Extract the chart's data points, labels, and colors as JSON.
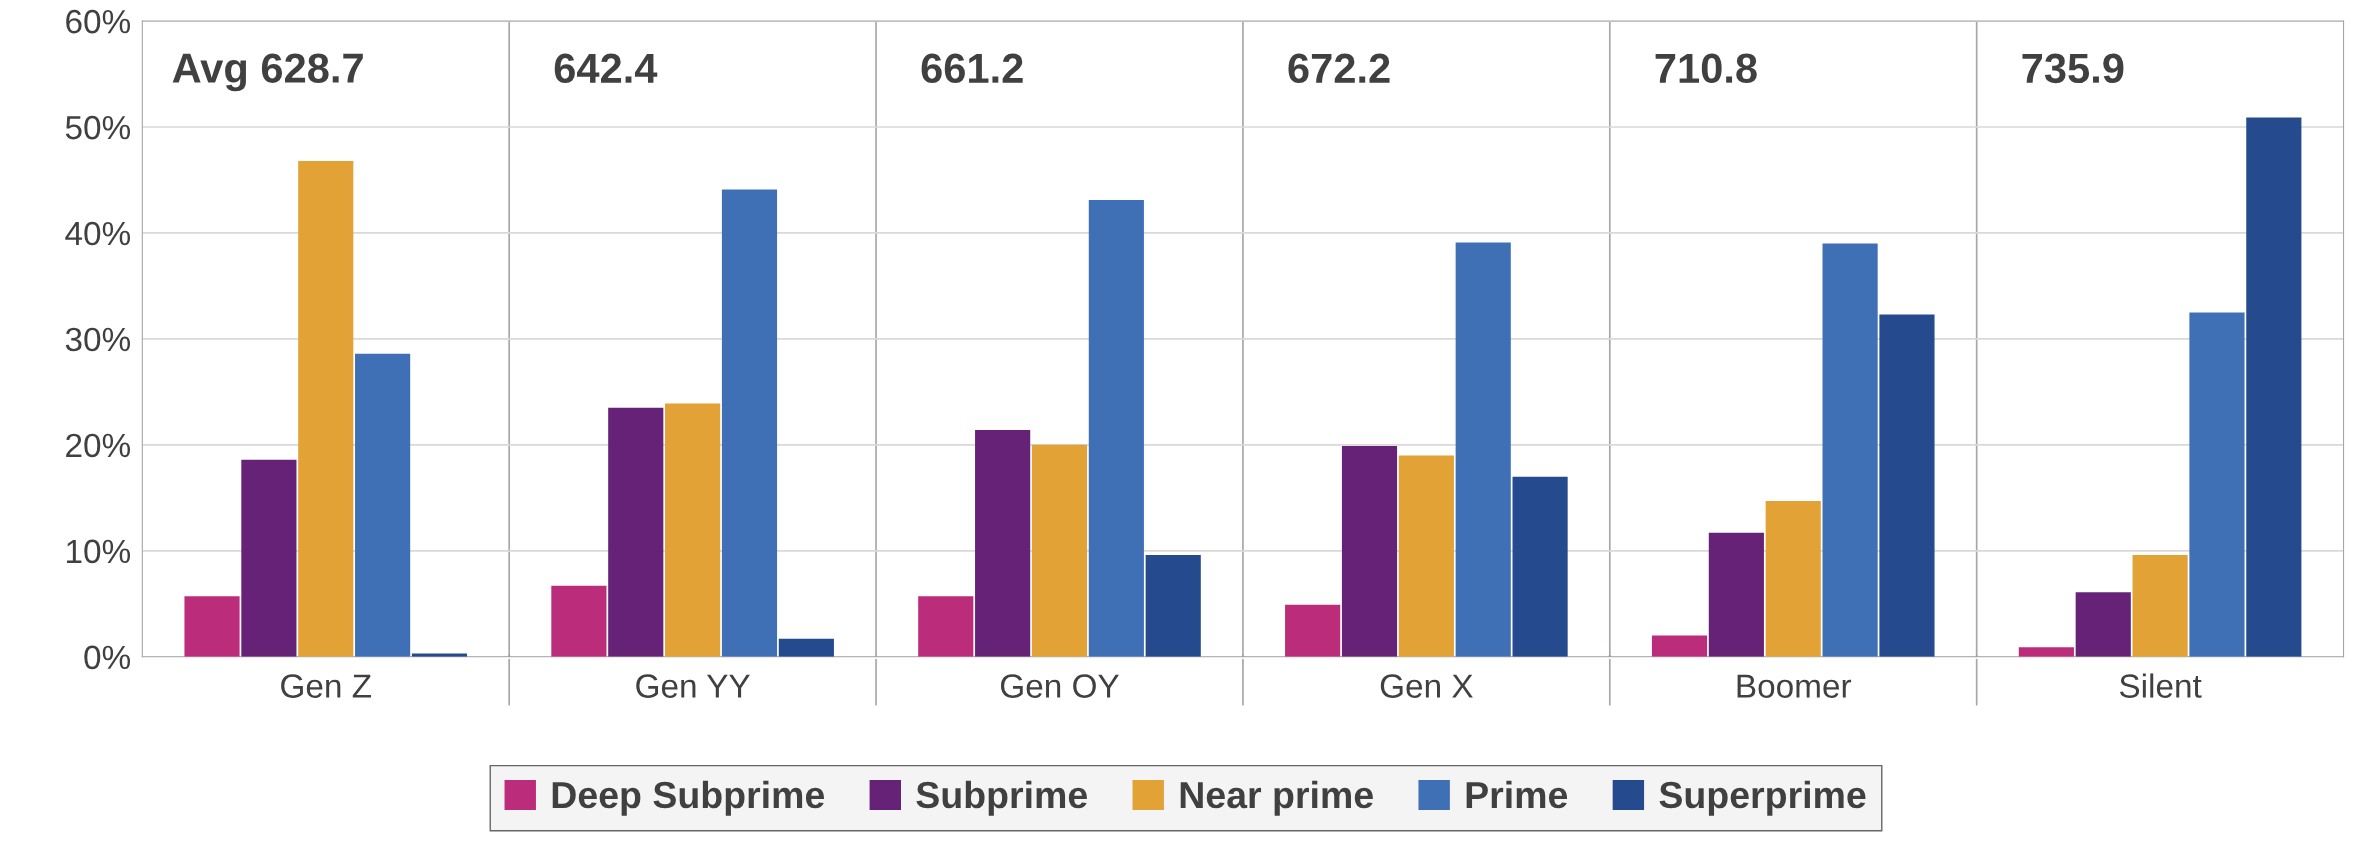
{
  "chart_data": {
    "type": "bar",
    "categories": [
      "Gen Z",
      "Gen YY",
      "Gen OY",
      "Gen X",
      "Boomer",
      "Silent"
    ],
    "series": [
      {
        "name": "Deep Subprime",
        "color": "#bb2d7a",
        "values": [
          5.7,
          6.7,
          5.7,
          4.9,
          2.0,
          0.9
        ]
      },
      {
        "name": "Subprime",
        "color": "#662277",
        "values": [
          18.6,
          23.5,
          21.4,
          19.9,
          11.7,
          6.1
        ]
      },
      {
        "name": "Near prime",
        "color": "#e2a236",
        "values": [
          46.8,
          23.9,
          20.0,
          19.0,
          14.7,
          9.6
        ]
      },
      {
        "name": "Prime",
        "color": "#3f70b5",
        "values": [
          28.6,
          44.1,
          43.1,
          39.1,
          39.0,
          32.5
        ]
      },
      {
        "name": "Superprime",
        "color": "#264a8e",
        "values": [
          0.3,
          1.7,
          9.6,
          17.0,
          32.3,
          50.9
        ]
      }
    ],
    "annotations": [
      "Avg 628.7",
      "642.4",
      "661.2",
      "672.2",
      "710.8",
      "735.9"
    ],
    "ylim": [
      0,
      60
    ],
    "yticks": [
      {
        "value": 0,
        "label": "0%"
      },
      {
        "value": 10,
        "label": "10%"
      },
      {
        "value": 20,
        "label": "20%"
      },
      {
        "value": 30,
        "label": "30%"
      },
      {
        "value": 40,
        "label": "40%"
      },
      {
        "value": 50,
        "label": "50%"
      },
      {
        "value": 60,
        "label": "60%"
      }
    ],
    "grid": "y",
    "legend": "bottom"
  }
}
